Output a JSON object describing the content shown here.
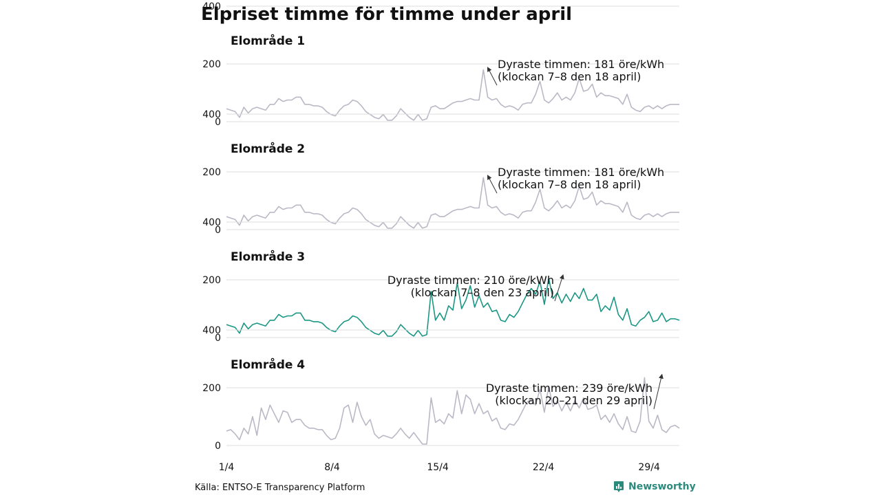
{
  "title": "Elpriset timme för timme under april",
  "source": "Källa: ENTSO-E Transparency Platform",
  "brand": {
    "name": "Newsworthy",
    "icon": "newsworthy-logo-icon",
    "color": "#2a8a7c"
  },
  "chart_data": {
    "type": "line",
    "x_range": [
      1,
      31
    ],
    "x_tick_labels": [
      "1/4",
      "8/4",
      "15/4",
      "22/4",
      "29/4"
    ],
    "x_tick_days": [
      1,
      8,
      15,
      22,
      29
    ],
    "ylim": [
      0,
      400
    ],
    "y_ticks": [
      0,
      200,
      400
    ],
    "y_tick_labels": [
      "0",
      "200",
      "400"
    ],
    "unit": "öre/kWh",
    "grid": true,
    "panels": [
      {
        "name": "Elområde 1",
        "color": "#b9b9c6",
        "values": [
          45,
          40,
          35,
          15,
          50,
          30,
          45,
          50,
          45,
          40,
          60,
          60,
          80,
          70,
          75,
          75,
          85,
          85,
          60,
          60,
          55,
          55,
          50,
          35,
          25,
          20,
          40,
          55,
          60,
          75,
          70,
          55,
          35,
          25,
          15,
          10,
          25,
          5,
          5,
          20,
          45,
          30,
          15,
          5,
          25,
          5,
          10,
          50,
          55,
          45,
          45,
          55,
          65,
          70,
          70,
          75,
          80,
          75,
          75,
          180,
          85,
          75,
          80,
          60,
          50,
          55,
          50,
          40,
          60,
          65,
          65,
          95,
          140,
          75,
          65,
          80,
          100,
          75,
          85,
          75,
          100,
          150,
          105,
          110,
          130,
          85,
          100,
          90,
          90,
          85,
          80,
          60,
          95,
          50,
          40,
          35,
          50,
          55,
          45,
          55,
          45,
          55,
          60,
          60,
          60
        ],
        "peak": {
          "value": 181,
          "day": 18.3,
          "label1": "Dyraste timmen: 181 öre/kWh",
          "label2": "(klockan 7–8 den 18 april)"
        }
      },
      {
        "name": "Elområde 2",
        "color": "#b9b9c6",
        "values": [
          45,
          40,
          35,
          15,
          50,
          30,
          45,
          50,
          45,
          40,
          60,
          60,
          80,
          70,
          75,
          75,
          85,
          85,
          60,
          60,
          55,
          55,
          50,
          35,
          25,
          20,
          40,
          55,
          60,
          75,
          70,
          55,
          35,
          25,
          15,
          10,
          25,
          5,
          5,
          20,
          45,
          30,
          15,
          5,
          25,
          5,
          10,
          50,
          55,
          45,
          45,
          55,
          65,
          70,
          70,
          75,
          80,
          75,
          75,
          180,
          85,
          75,
          80,
          60,
          50,
          55,
          50,
          40,
          60,
          65,
          65,
          95,
          140,
          75,
          65,
          80,
          100,
          75,
          85,
          75,
          100,
          150,
          105,
          110,
          130,
          85,
          100,
          90,
          90,
          85,
          80,
          60,
          95,
          50,
          40,
          35,
          50,
          55,
          45,
          55,
          45,
          55,
          60,
          60,
          60
        ],
        "peak": {
          "value": 181,
          "day": 18.3,
          "label1": "Dyraste timmen: 181 öre/kWh",
          "label2": "(klockan 7–8 den 18 april)"
        }
      },
      {
        "name": "Elområde 3",
        "color": "#1a9684",
        "values": [
          45,
          40,
          35,
          15,
          50,
          30,
          45,
          50,
          45,
          40,
          60,
          60,
          80,
          70,
          75,
          75,
          85,
          85,
          60,
          60,
          55,
          55,
          50,
          35,
          25,
          20,
          40,
          55,
          60,
          75,
          70,
          55,
          35,
          25,
          15,
          10,
          25,
          5,
          5,
          20,
          45,
          30,
          15,
          5,
          25,
          5,
          10,
          160,
          60,
          85,
          60,
          110,
          95,
          190,
          100,
          130,
          180,
          105,
          145,
          105,
          120,
          90,
          95,
          60,
          55,
          80,
          70,
          90,
          120,
          150,
          170,
          150,
          195,
          115,
          205,
          135,
          155,
          120,
          150,
          125,
          155,
          135,
          170,
          130,
          130,
          150,
          90,
          110,
          95,
          140,
          80,
          60,
          100,
          45,
          40,
          60,
          70,
          90,
          55,
          60,
          85,
          55,
          65,
          65,
          60
        ],
        "peak": {
          "value": 210,
          "day": 23.3,
          "label1": "Dyraste timmen: 210 öre/kWh",
          "label2": "(klockan 7–8 den 23 april)"
        }
      },
      {
        "name": "Elområde 4",
        "color": "#b9b9c6",
        "values": [
          50,
          55,
          40,
          20,
          60,
          40,
          100,
          35,
          130,
          90,
          140,
          110,
          80,
          120,
          115,
          80,
          90,
          90,
          70,
          60,
          60,
          55,
          55,
          35,
          20,
          25,
          60,
          130,
          140,
          80,
          150,
          100,
          70,
          90,
          40,
          25,
          35,
          30,
          25,
          40,
          60,
          40,
          25,
          45,
          25,
          5,
          5,
          165,
          80,
          90,
          75,
          110,
          95,
          190,
          110,
          175,
          160,
          110,
          145,
          110,
          120,
          85,
          95,
          60,
          55,
          75,
          70,
          90,
          120,
          150,
          160,
          140,
          195,
          115,
          205,
          135,
          155,
          120,
          150,
          120,
          155,
          130,
          165,
          125,
          130,
          140,
          90,
          105,
          80,
          110,
          75,
          55,
          100,
          50,
          45,
          85,
          235,
          85,
          60,
          105,
          55,
          45,
          65,
          70,
          60
        ],
        "peak": {
          "value": 239,
          "day": 29.85,
          "label1": "Dyraste timmen: 239 öre/kWh",
          "label2": "(klockan 20–21 den 29 april)"
        }
      }
    ]
  }
}
